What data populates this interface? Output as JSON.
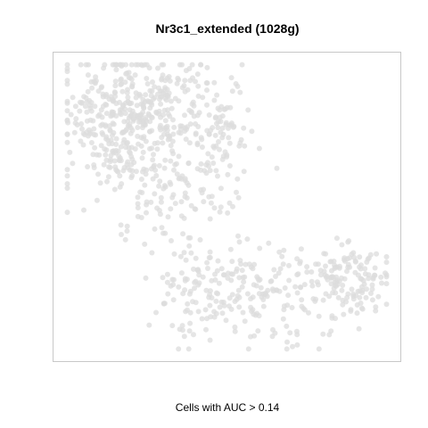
{
  "chart_data": {
    "type": "scatter",
    "title": "Nr3c1_extended (1028g)",
    "xlabel": "Cells with AUC > 0.14",
    "ylabel": "",
    "grid": false,
    "legend": "none",
    "point_color": "#dcdcdc",
    "frame_color": "#c8c8c8",
    "xlim": [
      0,
      100
    ],
    "ylim": [
      0,
      100
    ],
    "point_count": 1028,
    "clusters": [
      {
        "cx": 18,
        "cy": 78,
        "sx": 10,
        "sy": 13,
        "weight": 36
      },
      {
        "cx": 27,
        "cy": 84,
        "sx": 9,
        "sy": 8,
        "weight": 18
      },
      {
        "cx": 48,
        "cy": 73,
        "sx": 6,
        "sy": 13,
        "weight": 14
      },
      {
        "cx": 32,
        "cy": 56,
        "sx": 7,
        "sy": 8,
        "weight": 9
      },
      {
        "cx": 41,
        "cy": 23,
        "sx": 6,
        "sy": 10,
        "weight": 8
      },
      {
        "cx": 62,
        "cy": 22,
        "sx": 13,
        "sy": 9,
        "weight": 22
      },
      {
        "cx": 87,
        "cy": 26,
        "sx": 6,
        "sy": 5,
        "weight": 14
      }
    ]
  }
}
